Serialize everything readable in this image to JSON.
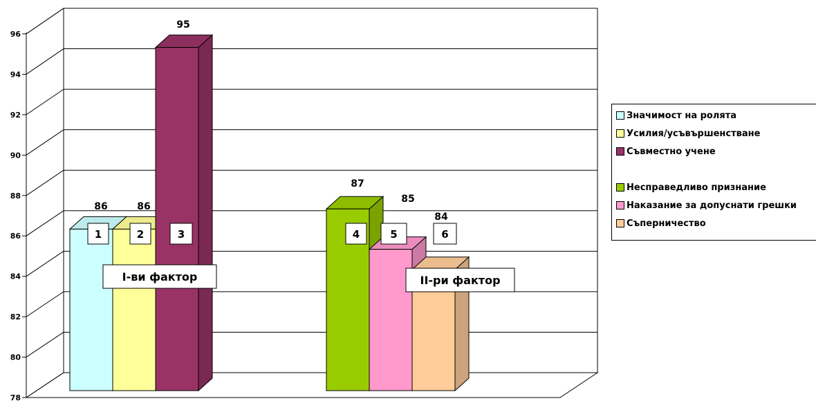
{
  "chart_data": {
    "type": "bar",
    "ylim": [
      78,
      96
    ],
    "yticks": [
      "78",
      "80",
      "82",
      "84",
      "86",
      "88",
      "90",
      "92",
      "94",
      "96"
    ],
    "bars": [
      {
        "id": 1,
        "name": "Значимост на ролята",
        "value": 86,
        "value_label": "86",
        "color": "#ccffff"
      },
      {
        "id": 2,
        "name": "Усилия/усъвършенстване",
        "value": 86,
        "value_label": "86",
        "color": "#ffff99"
      },
      {
        "id": 3,
        "name": "Съвместно учене",
        "value": 95,
        "value_label": "95",
        "color": "#993366"
      },
      {
        "id": 4,
        "name": "Несправедливо признание",
        "value": 87,
        "value_label": "87",
        "color": "#99cc00"
      },
      {
        "id": 5,
        "name": "Наказание за допуснати грешки",
        "value": 85,
        "value_label": "85",
        "color": "#ff99cc"
      },
      {
        "id": 6,
        "name": "Съперничество",
        "value": 84,
        "value_label": "84",
        "color": "#ffcc99"
      }
    ],
    "bar_numbers": [
      "1",
      "2",
      "3",
      "4",
      "5",
      "6"
    ],
    "group_labels": [
      "I-ви фактор",
      "II-ри фактор"
    ],
    "grid": true,
    "legend_position": "right"
  }
}
